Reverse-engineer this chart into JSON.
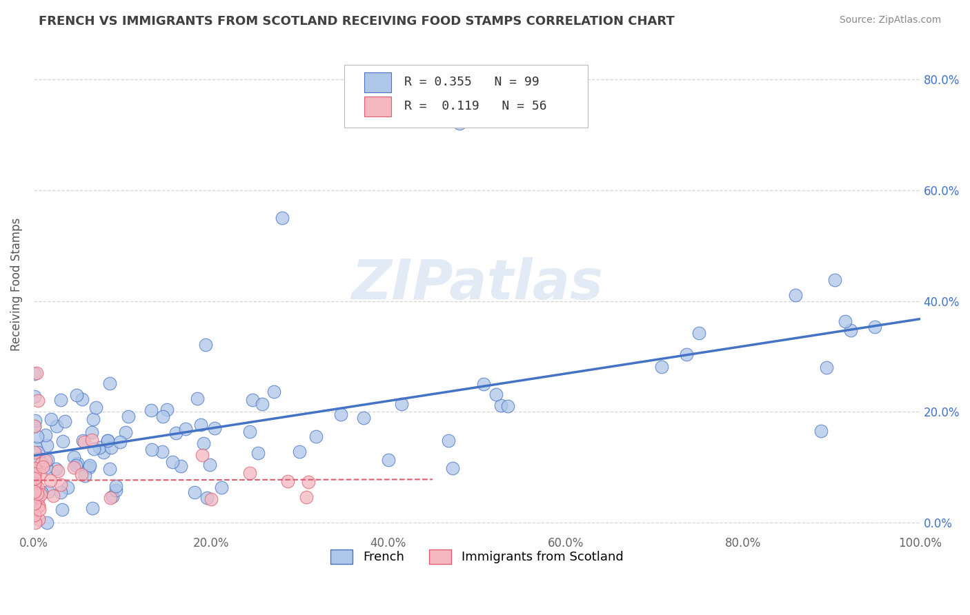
{
  "title": "FRENCH VS IMMIGRANTS FROM SCOTLAND RECEIVING FOOD STAMPS CORRELATION CHART",
  "source": "Source: ZipAtlas.com",
  "ylabel": "Receiving Food Stamps",
  "xlim": [
    0.0,
    1.0
  ],
  "ylim": [
    -0.02,
    0.88
  ],
  "xtick_vals": [
    0.0,
    0.2,
    0.4,
    0.6,
    0.8,
    1.0
  ],
  "xtick_labels": [
    "0.0%",
    "20.0%",
    "40.0%",
    "60.0%",
    "80.0%",
    "100.0%"
  ],
  "ytick_vals": [
    0.0,
    0.2,
    0.4,
    0.6,
    0.8
  ],
  "ytick_right_labels": [
    "0.0%",
    "20.0%",
    "40.0%",
    "60.0%",
    "80.0%"
  ],
  "grid_color": "#cccccc",
  "background_color": "#ffffff",
  "watermark_text": "ZIPatlas",
  "color_french": "#aec6e8",
  "color_scotland": "#f4b8c1",
  "line_color_french": "#4472c4",
  "line_color_scotland": "#e05c6e",
  "title_color": "#404040",
  "source_color": "#888888",
  "legend_line1": "R = 0.355   N = 99",
  "legend_line2": "R =  0.119   N = 56"
}
